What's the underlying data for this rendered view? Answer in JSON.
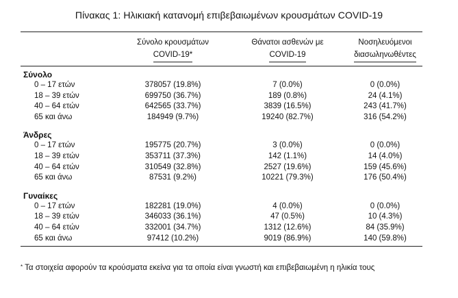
{
  "title": "Πίνακας 1: Ηλικιακή κατανομή επιβεβαιωμένων κρουσμάτων COVID-19",
  "headers": [
    {
      "line1": "Σύνολο κρουσμάτων",
      "line2": "COVID-19*"
    },
    {
      "line1": "Θάνατοι ασθενών με",
      "line2": "COVID-19"
    },
    {
      "line1": "Νοσηλευόμενοι",
      "line2": "διασωληνωθέντες"
    }
  ],
  "sections": [
    {
      "title": "Σύνολο",
      "rows": [
        {
          "age": "0 – 17 ετών",
          "cases": "378057 (19.8%)",
          "deaths": "7 (0.0%)",
          "icu": "0 (0.0%)"
        },
        {
          "age": "18 – 39 ετών",
          "cases": "699750 (36.7%)",
          "deaths": "189 (0.8%)",
          "icu": "24 (4.1%)"
        },
        {
          "age": "40 – 64 ετών",
          "cases": "642565 (33.7%)",
          "deaths": "3839 (16.5%)",
          "icu": "243 (41.7%)"
        },
        {
          "age": "65 και άνω",
          "cases": "184949 (9.7%)",
          "deaths": "19240 (82.7%)",
          "icu": "316 (54.2%)"
        }
      ]
    },
    {
      "title": "Άνδρες",
      "rows": [
        {
          "age": "0 – 17 ετών",
          "cases": "195775 (20.7%)",
          "deaths": "3 (0.0%)",
          "icu": "0 (0.0%)"
        },
        {
          "age": "18 – 39 ετών",
          "cases": "353711 (37.3%)",
          "deaths": "142 (1.1%)",
          "icu": "14 (4.0%)"
        },
        {
          "age": "40 – 64 ετών",
          "cases": "310549 (32.8%)",
          "deaths": "2527 (19.6%)",
          "icu": "159 (45.6%)"
        },
        {
          "age": "65 και άνω",
          "cases": "87531 (9.2%)",
          "deaths": "10221 (79.3%)",
          "icu": "176 (50.4%)"
        }
      ]
    },
    {
      "title": "Γυναίκες",
      "rows": [
        {
          "age": "0 – 17 ετών",
          "cases": "182281 (19.0%)",
          "deaths": "4 (0.0%)",
          "icu": "0 (0.0%)"
        },
        {
          "age": "18 – 39 ετών",
          "cases": "346033 (36.1%)",
          "deaths": "47 (0.5%)",
          "icu": "10 (4.3%)"
        },
        {
          "age": "40 – 64 ετών",
          "cases": "332001 (34.7%)",
          "deaths": "1312 (12.6%)",
          "icu": "84 (35.9%)"
        },
        {
          "age": "65 και άνω",
          "cases": "97412 (10.2%)",
          "deaths": "9019 (86.9%)",
          "icu": "140 (59.8%)"
        }
      ]
    }
  ],
  "footnote_mark": "*",
  "footnote": "Τα στοιχεία αφορούν τα κρούσματα εκείνα για τα οποία είναι γνωστή και επιβεβαιωμένη η ηλικία τους"
}
